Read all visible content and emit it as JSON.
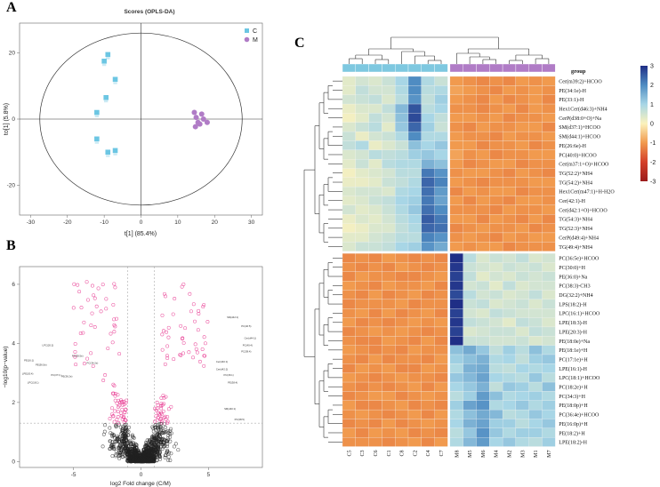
{
  "figure": {
    "panel_letters": [
      "A",
      "B",
      "C"
    ]
  },
  "chart_data": [
    {
      "panel": "A",
      "type": "scatter",
      "title": "Scores (OPLS-DA)",
      "xlabel": "t[1] (85.4%)",
      "ylabel": "to[1] (5.8%)",
      "xlim": [
        -33,
        33
      ],
      "ylim": [
        -29,
        29
      ],
      "xticks": [
        -30,
        -20,
        -10,
        0,
        10,
        20,
        30
      ],
      "yticks": [
        -20,
        0,
        20
      ],
      "ellipse": {
        "center": [
          0,
          0
        ],
        "rx": 27.5,
        "ry": 26
      },
      "legend": [
        {
          "label": "C",
          "color": "#6cc6e3",
          "shape": "square"
        },
        {
          "label": "M",
          "color": "#b07cc6",
          "shape": "circle"
        }
      ],
      "series": [
        {
          "name": "C",
          "points": [
            [
              -9,
              19.5
            ],
            [
              -10,
              17.5
            ],
            [
              -7,
              12
            ],
            [
              -9.5,
              6.5
            ],
            [
              -12,
              2
            ],
            [
              -7,
              -9.5
            ],
            [
              -9,
              -10
            ],
            [
              -12,
              -6
            ]
          ]
        },
        {
          "name": "M",
          "points": [
            [
              14.5,
              2
            ],
            [
              16.5,
              1.5
            ],
            [
              15,
              0.5
            ],
            [
              17,
              0
            ],
            [
              15.5,
              -1
            ],
            [
              18,
              -1
            ],
            [
              16,
              -1.5
            ],
            [
              14.8,
              -2.3
            ]
          ]
        }
      ]
    },
    {
      "panel": "B",
      "type": "scatter",
      "title": "",
      "xlabel": "log2 Fold change (C/M)",
      "ylabel": "−log10(p−value)",
      "xlim": [
        -9,
        9
      ],
      "ylim": [
        -0.2,
        6.6
      ],
      "xticks": [
        -5,
        0,
        5
      ],
      "yticks": [
        0,
        2,
        4,
        6
      ],
      "threshold_lines": {
        "vertical": [
          -1,
          1
        ],
        "horizontal": 1.3
      },
      "colors": {
        "significant": "#e8368f",
        "nonsignificant": "#222222"
      },
      "annotations": [
        {
          "label": "LPC(20:2)",
          "x": -6.9,
          "y": 3.9
        },
        {
          "label": "PS(38:5e)",
          "x": -4.7,
          "y": 3.55
        },
        {
          "label": "PE(16:1)",
          "x": -8.3,
          "y": 3.4
        },
        {
          "label": "PE(36:5e)",
          "x": -7.4,
          "y": 3.25
        },
        {
          "label": "PC(34:2e)",
          "x": -3.6,
          "y": 3.3
        },
        {
          "label": "LPE(20:4)",
          "x": -8.4,
          "y": 2.95
        },
        {
          "label": "PC(37:1)",
          "x": -6.3,
          "y": 2.9
        },
        {
          "label": "PE(36:2e)",
          "x": -5.5,
          "y": 2.85
        },
        {
          "label": "LPC(18:1)",
          "x": -8.0,
          "y": 2.65
        },
        {
          "label": "SM(d42:1)",
          "x": 6.8,
          "y": 4.85
        },
        {
          "label": "PC(40:5)",
          "x": 7.8,
          "y": 4.55
        },
        {
          "label": "Cer(d44:1)",
          "x": 8.1,
          "y": 4.15
        },
        {
          "label": "PC(40:4)",
          "x": 7.9,
          "y": 3.9
        },
        {
          "label": "PC(38:4)",
          "x": 7.8,
          "y": 3.7
        },
        {
          "label": "Cer(d40:1)",
          "x": 6.0,
          "y": 3.35
        },
        {
          "label": "Cer(d42:2)",
          "x": 6.0,
          "y": 3.1
        },
        {
          "label": "PC(36:1)",
          "x": 6.5,
          "y": 2.9
        },
        {
          "label": "PE(38:4)",
          "x": 6.8,
          "y": 2.65
        },
        {
          "label": "SM(d40:1)",
          "x": 6.6,
          "y": 1.75
        },
        {
          "label": "PC(38:5)",
          "x": 7.3,
          "y": 1.4
        }
      ]
    },
    {
      "panel": "C",
      "type": "heatmap",
      "columns": [
        "C5",
        "C3",
        "C6",
        "C1",
        "C8",
        "C2",
        "C4",
        "C7",
        "M8",
        "M5",
        "M6",
        "M4",
        "M2",
        "M3",
        "M1",
        "M7"
      ],
      "column_groups": [
        "C",
        "C",
        "C",
        "C",
        "C",
        "C",
        "C",
        "C",
        "M",
        "M",
        "M",
        "M",
        "M",
        "M",
        "M",
        "M"
      ],
      "group_colors": {
        "C": "#7ec8e0",
        "M": "#b07cc6"
      },
      "group_label": "group",
      "rows": [
        "Cer(m39:2)+HCOO",
        "PE(34:1e)-H",
        "PE(33:1)-H",
        "Hex1Cer(d46:3)+NH4",
        "CerP(d38:0+O)+Na",
        "SM(d37:1)+HCOO",
        "SM(d44:1)+HCOO",
        "PE(26:6e)-H",
        "PC(40:0)+HCOO",
        "Cer(m37:1+O)+HCOO",
        "TG(52:2)+NH4",
        "TG(54:2)+NH4",
        "Hex1Cer(m47:1)+H-H2O",
        "Cer(42:1)-H",
        "Cer(d42:1+O)+HCOO",
        "TG(54:3)+NH4",
        "TG(52:3)+NH4",
        "CerP(d49:4)+NH4",
        "TG(49:4)+NH4",
        "PC(36:5e)+HCOO",
        "PC(30:0)+H",
        "PE(36:0)+Na",
        "PC(38:3)-CH3",
        "DG(32:2)+NH4",
        "LPS(18:2)-H",
        "LPC(16:1)+HCOO",
        "LPE(18:3)-H",
        "LPE(20:3)-H",
        "PE(18:0e)+Na",
        "PE(18:1e)+H",
        "PC(17:1e)+H",
        "LPE(16:1)-H",
        "LPC(18:1)+HCOO",
        "PC(18:2e)+H",
        "PC(34:3)+H",
        "PE(18:0p)+H",
        "PC(36:4e)+HCOO",
        "PE(16:0p)+H",
        "PE(18:2)+H",
        "LPE(18:2)-H"
      ],
      "upper_cluster_rows": 19,
      "color_scale": {
        "min": -3,
        "max": 3,
        "ticks": [
          3,
          2,
          1,
          0,
          -1,
          -2,
          -3
        ],
        "stops": [
          "#9b1c1c",
          "#d4402a",
          "#f19a4e",
          "#fbf2bd",
          "#a8d6e6",
          "#4f8cc2",
          "#1f2e86"
        ]
      },
      "values": [
        [
          0.3,
          0.5,
          0.4,
          0.6,
          1.0,
          2.0,
          0.9,
          0.6,
          -1.0,
          -1.1,
          -1.2,
          -1.1,
          -1.2,
          -1.0,
          -1.1,
          -1.0
        ],
        [
          0.3,
          0.7,
          0.5,
          0.5,
          0.9,
          2.0,
          0.8,
          0.9,
          -0.9,
          -1.0,
          -1.1,
          -1.2,
          -1.0,
          -1.1,
          -1.0,
          -1.1
        ],
        [
          0.5,
          0.6,
          0.7,
          0.4,
          0.8,
          1.9,
          0.7,
          1.1,
          -1.0,
          -1.1,
          -1.2,
          -1.0,
          -1.2,
          -1.1,
          -1.0,
          -1.2
        ],
        [
          0.2,
          0.4,
          0.4,
          0.7,
          1.4,
          2.6,
          0.8,
          1.0,
          -1.1,
          -1.1,
          -1.2,
          -1.1,
          -1.0,
          -1.2,
          -1.0,
          -1.1
        ],
        [
          0.1,
          0.3,
          0.7,
          0.5,
          1.3,
          2.7,
          1.0,
          0.7,
          -1.0,
          -1.0,
          -1.1,
          -1.0,
          -1.2,
          -1.1,
          -1.1,
          -1.0
        ],
        [
          0.4,
          0.6,
          0.8,
          0.3,
          1.2,
          2.4,
          1.1,
          0.6,
          -1.1,
          -1.2,
          -1.0,
          -1.1,
          -1.1,
          -1.0,
          -1.0,
          -1.2
        ],
        [
          0.6,
          0.2,
          0.5,
          0.6,
          0.9,
          2.0,
          0.9,
          0.9,
          -1.0,
          -1.1,
          -1.1,
          -1.2,
          -1.0,
          -1.1,
          -1.1,
          -1.0
        ],
        [
          0.7,
          0.9,
          0.2,
          0.4,
          0.6,
          1.3,
          1.0,
          1.2,
          -1.0,
          -1.0,
          -1.2,
          -1.1,
          -1.1,
          -1.0,
          -1.2,
          -1.1
        ],
        [
          0.4,
          0.5,
          0.8,
          0.7,
          0.8,
          1.1,
          1.2,
          1.0,
          -0.9,
          -1.1,
          -1.0,
          -1.2,
          -1.1,
          -1.1,
          -1.0,
          -1.0
        ],
        [
          0.3,
          0.6,
          0.3,
          0.8,
          0.9,
          0.9,
          1.5,
          1.3,
          -1.0,
          -1.2,
          -1.1,
          -1.0,
          -1.0,
          -1.2,
          -1.1,
          -1.1
        ],
        [
          0.1,
          0.3,
          0.4,
          0.5,
          0.8,
          0.8,
          2.2,
          1.9,
          -1.1,
          -1.0,
          -1.0,
          -1.1,
          -1.2,
          -1.0,
          -1.1,
          -1.2
        ],
        [
          0.2,
          0.2,
          0.3,
          0.6,
          0.7,
          0.9,
          2.4,
          2.1,
          -1.0,
          -1.1,
          -1.2,
          -1.1,
          -1.1,
          -1.1,
          -1.0,
          -1.0
        ],
        [
          0.4,
          0.5,
          0.5,
          0.4,
          0.9,
          1.0,
          2.3,
          1.8,
          -1.2,
          -1.0,
          -1.1,
          -1.0,
          -1.0,
          -1.2,
          -1.1,
          -1.1
        ],
        [
          0.3,
          0.4,
          0.6,
          0.7,
          1.0,
          1.1,
          2.2,
          1.7,
          -1.0,
          -1.2,
          -1.0,
          -1.1,
          -1.2,
          -1.0,
          -1.0,
          -1.1
        ],
        [
          0.5,
          0.3,
          0.4,
          0.6,
          0.9,
          1.2,
          2.3,
          2.0,
          -1.1,
          -1.1,
          -1.1,
          -1.2,
          -1.0,
          -1.1,
          -1.1,
          -1.0
        ],
        [
          0.2,
          0.4,
          0.3,
          0.5,
          0.8,
          1.0,
          2.5,
          2.2,
          -1.0,
          -1.0,
          -1.2,
          -1.0,
          -1.1,
          -1.2,
          -1.0,
          -1.2
        ],
        [
          0.1,
          0.2,
          0.4,
          0.4,
          0.7,
          0.9,
          2.4,
          2.3,
          -1.2,
          -1.1,
          -1.0,
          -1.1,
          -1.1,
          -1.0,
          -1.2,
          -1.1
        ],
        [
          0.3,
          0.3,
          0.5,
          0.6,
          0.8,
          0.8,
          2.1,
          1.9,
          -1.1,
          -1.0,
          -1.1,
          -1.2,
          -1.0,
          -1.1,
          -1.0,
          -1.0
        ],
        [
          0.4,
          0.6,
          0.6,
          0.7,
          1.0,
          1.1,
          1.9,
          1.6,
          -1.0,
          -1.1,
          -1.0,
          -1.0,
          -1.2,
          -1.1,
          -1.1,
          -1.1
        ],
        [
          -1.2,
          -1.1,
          -1.2,
          -1.0,
          -1.1,
          -1.2,
          -1.1,
          -1.2,
          3.0,
          0.8,
          0.4,
          0.6,
          0.5,
          0.7,
          0.4,
          0.5
        ],
        [
          -1.1,
          -1.2,
          -1.1,
          -1.2,
          -1.0,
          -1.1,
          -1.2,
          -1.1,
          2.9,
          0.6,
          0.5,
          0.4,
          0.6,
          0.5,
          0.6,
          0.4
        ],
        [
          -1.2,
          -1.0,
          -1.1,
          -1.1,
          -1.2,
          -1.2,
          -1.1,
          -1.0,
          2.8,
          0.7,
          0.3,
          0.5,
          0.4,
          0.6,
          0.5,
          0.6
        ],
        [
          -1.0,
          -1.1,
          -1.2,
          -1.0,
          -1.1,
          -1.1,
          -1.0,
          -1.2,
          2.9,
          0.5,
          0.6,
          0.3,
          0.7,
          0.4,
          0.5,
          0.5
        ],
        [
          -1.1,
          -1.2,
          -1.0,
          -1.2,
          -1.1,
          -1.0,
          -1.2,
          -1.1,
          2.7,
          0.8,
          0.5,
          0.6,
          0.4,
          0.5,
          0.7,
          0.4
        ],
        [
          -1.2,
          -1.1,
          -1.1,
          -1.1,
          -1.0,
          -1.2,
          -1.1,
          -1.1,
          3.0,
          0.6,
          0.7,
          0.4,
          0.5,
          0.6,
          0.4,
          0.6
        ],
        [
          -1.1,
          -1.0,
          -1.2,
          -1.0,
          -1.2,
          -1.1,
          -1.0,
          -1.2,
          2.8,
          0.5,
          0.4,
          0.7,
          0.6,
          0.5,
          0.5,
          0.5
        ],
        [
          -1.0,
          -1.2,
          -1.1,
          -1.2,
          -1.1,
          -1.0,
          -1.1,
          -1.0,
          2.9,
          0.7,
          0.6,
          0.5,
          0.3,
          0.7,
          0.6,
          0.4
        ],
        [
          -1.2,
          -1.1,
          -1.0,
          -1.1,
          -1.0,
          -1.1,
          -1.2,
          -1.1,
          2.8,
          0.4,
          0.5,
          0.6,
          0.6,
          0.4,
          0.7,
          0.6
        ],
        [
          -1.1,
          -1.2,
          -1.2,
          -1.0,
          -1.1,
          -1.2,
          -1.0,
          -1.2,
          3.0,
          0.6,
          0.6,
          0.5,
          0.5,
          0.6,
          0.4,
          0.5
        ],
        [
          -1.0,
          -1.1,
          -1.2,
          -1.1,
          -1.2,
          -1.0,
          -1.1,
          -1.1,
          1.3,
          1.6,
          1.2,
          0.7,
          1.1,
          0.8,
          1.3,
          0.9
        ],
        [
          -1.1,
          -1.2,
          -1.0,
          -1.2,
          -1.1,
          -1.1,
          -1.2,
          -1.0,
          1.1,
          1.3,
          1.5,
          0.9,
          1.0,
          0.7,
          1.1,
          1.2
        ],
        [
          -1.2,
          -1.0,
          -1.1,
          -1.0,
          -1.2,
          -1.2,
          -1.0,
          -1.1,
          0.9,
          1.5,
          1.6,
          0.8,
          0.7,
          1.0,
          0.9,
          1.0
        ],
        [
          -1.0,
          -1.1,
          -1.2,
          -1.1,
          -1.0,
          -1.1,
          -1.1,
          -1.2,
          1.2,
          1.4,
          1.7,
          1.0,
          0.9,
          0.8,
          1.2,
          0.8
        ],
        [
          -1.1,
          -1.2,
          -1.1,
          -1.2,
          -1.1,
          -1.0,
          -1.2,
          -1.0,
          1.0,
          1.2,
          1.5,
          0.7,
          1.2,
          1.1,
          0.8,
          1.3
        ],
        [
          -1.2,
          -1.1,
          -1.0,
          -1.0,
          -1.2,
          -1.1,
          -1.0,
          -1.1,
          0.8,
          1.1,
          1.8,
          1.3,
          0.9,
          1.0,
          1.1,
          0.9
        ],
        [
          -1.0,
          -1.2,
          -1.2,
          -1.1,
          -1.0,
          -1.2,
          -1.1,
          -1.2,
          1.1,
          1.7,
          1.9,
          0.9,
          1.0,
          1.2,
          0.9,
          1.1
        ],
        [
          -1.1,
          -1.0,
          -1.1,
          -1.2,
          -1.1,
          -1.0,
          -1.2,
          -1.0,
          0.9,
          1.3,
          1.6,
          1.4,
          0.8,
          0.9,
          1.2,
          1.0
        ],
        [
          -1.2,
          -1.1,
          -1.2,
          -1.0,
          -1.2,
          -1.1,
          -1.0,
          -1.1,
          1.0,
          1.5,
          1.7,
          1.1,
          1.1,
          0.8,
          1.0,
          1.2
        ],
        [
          -1.0,
          -1.2,
          -1.0,
          -1.1,
          -1.0,
          -1.2,
          -1.1,
          -1.2,
          0.8,
          1.2,
          1.9,
          1.2,
          0.9,
          1.1,
          1.1,
          0.9
        ],
        [
          -1.1,
          -1.1,
          -1.1,
          -1.2,
          -1.1,
          -1.0,
          -1.2,
          -1.0,
          0.9,
          1.4,
          1.8,
          1.0,
          1.2,
          0.9,
          0.8,
          1.1
        ]
      ]
    }
  ]
}
